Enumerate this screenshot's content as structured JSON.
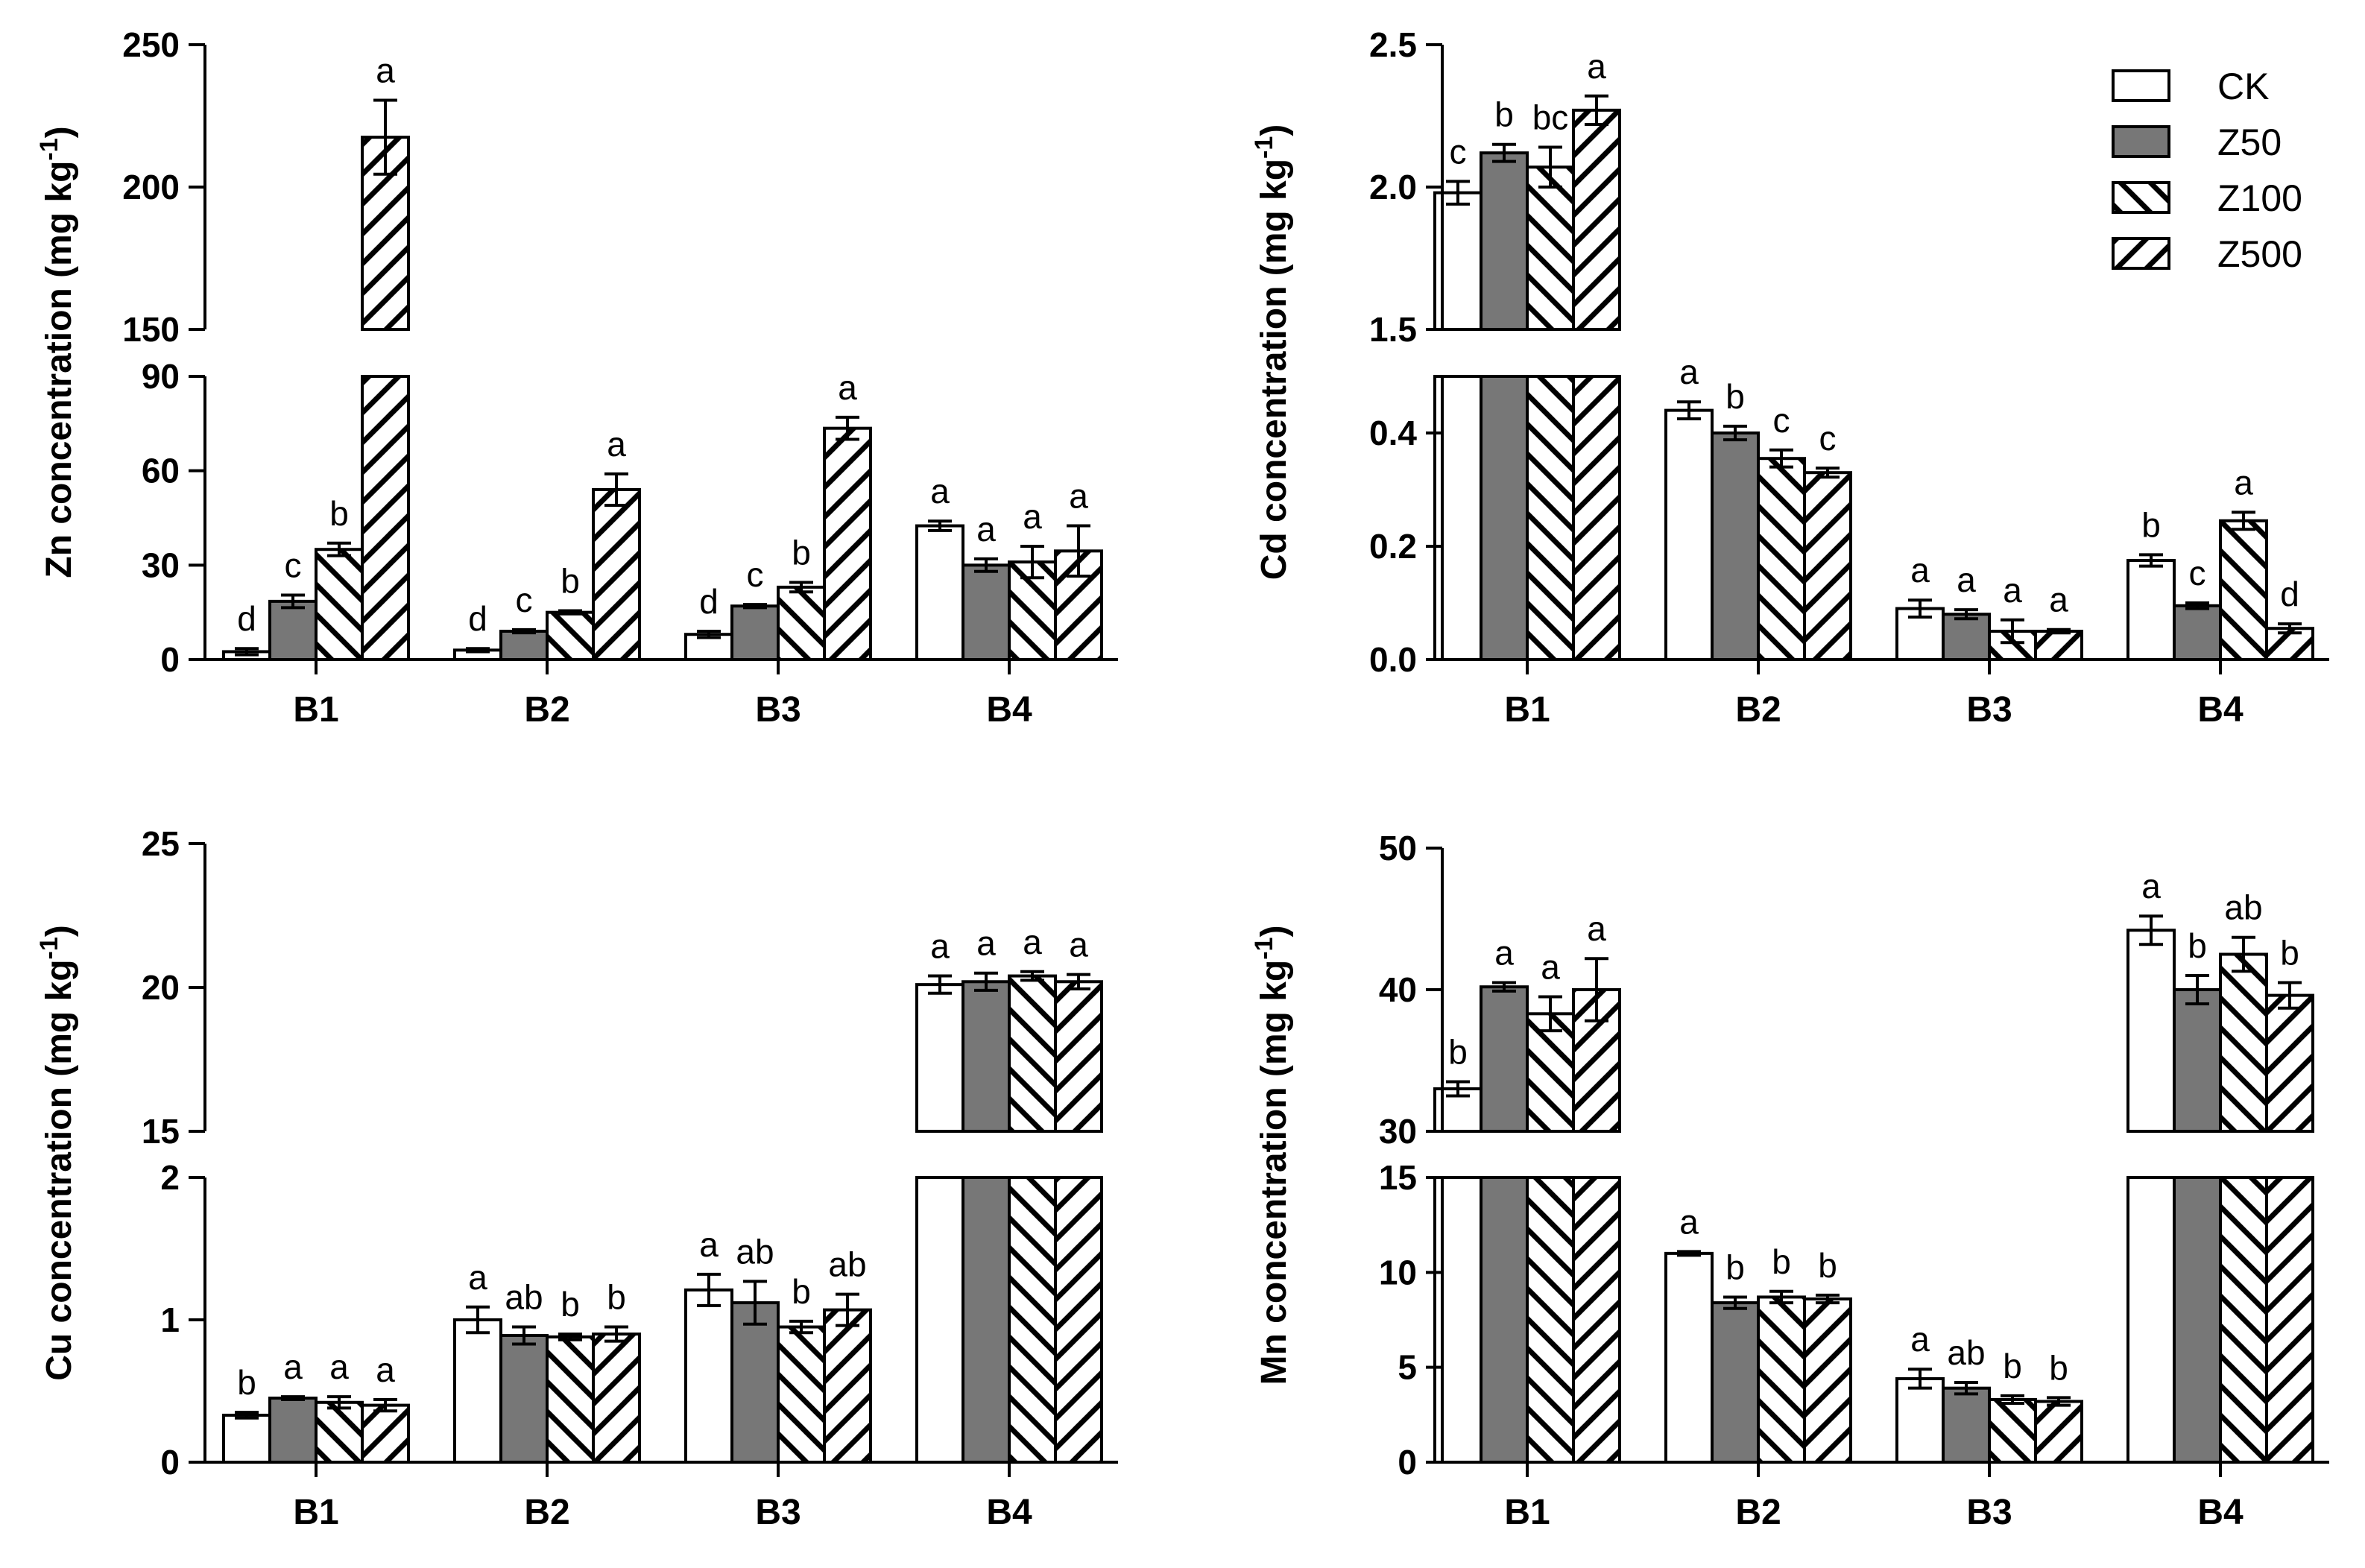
{
  "series_names": [
    "CK",
    "Z50",
    "Z100",
    "Z500"
  ],
  "chart_data": [
    {
      "type": "bar",
      "panel": "top-left",
      "ylabel": "Zn concentration (mg kg",
      "ylabel_sup": "-1",
      "ylabel_tail": ")",
      "categories": [
        "B1",
        "B2",
        "B3",
        "B4"
      ],
      "broken_axis": true,
      "lower_range": [
        0,
        90
      ],
      "lower_ticks": [
        "0",
        "30",
        "60",
        "90"
      ],
      "upper_range": [
        150,
        250
      ],
      "upper_ticks": [
        "150",
        "200",
        "250"
      ],
      "series": [
        {
          "name": "CK",
          "values": [
            2.5,
            3.0,
            8.0,
            42.5
          ],
          "errors": [
            1,
            0.5,
            1,
            1.5
          ],
          "letters": [
            "d",
            "d",
            "d",
            "a"
          ]
        },
        {
          "name": "Z50",
          "values": [
            18.5,
            9.0,
            17.0,
            30.0
          ],
          "errors": [
            2,
            0.5,
            0.5,
            2
          ],
          "letters": [
            "c",
            "c",
            "c",
            "a"
          ]
        },
        {
          "name": "Z100",
          "values": [
            35.0,
            15.0,
            23.0,
            31.0
          ],
          "errors": [
            2,
            0.5,
            1.5,
            5
          ],
          "letters": [
            "b",
            "b",
            "b",
            "a"
          ]
        },
        {
          "name": "Z500",
          "values": [
            217.5,
            54.0,
            73.5,
            34.5
          ],
          "errors": [
            13,
            5,
            3.5,
            8
          ],
          "letters": [
            "a",
            "a",
            "a",
            "a"
          ]
        }
      ]
    },
    {
      "type": "bar",
      "panel": "top-right",
      "ylabel": "Cd concentration (mg kg",
      "ylabel_sup": "-1",
      "ylabel_tail": ")",
      "categories": [
        "B1",
        "B2",
        "B3",
        "B4"
      ],
      "broken_axis": true,
      "lower_range": [
        0,
        0.5
      ],
      "lower_ticks": [
        "0.0",
        "0.2",
        "0.4"
      ],
      "upper_range": [
        1.5,
        2.5
      ],
      "upper_ticks": [
        "1.5",
        "2.0",
        "2.5"
      ],
      "legend_position": "top-right",
      "series": [
        {
          "name": "CK",
          "values": [
            1.98,
            0.44,
            0.09,
            0.175
          ],
          "errors": [
            0.04,
            0.015,
            0.015,
            0.01
          ],
          "letters": [
            "c",
            "a",
            "a",
            "b"
          ]
        },
        {
          "name": "Z50",
          "values": [
            2.12,
            0.4,
            0.08,
            0.095
          ],
          "errors": [
            0.03,
            0.012,
            0.008,
            0.005
          ],
          "letters": [
            "b",
            "b",
            "a",
            "c"
          ]
        },
        {
          "name": "Z100",
          "values": [
            2.07,
            0.355,
            0.05,
            0.245
          ],
          "errors": [
            0.07,
            0.015,
            0.02,
            0.015
          ],
          "letters": [
            "bc",
            "c",
            "a",
            "a"
          ]
        },
        {
          "name": "Z500",
          "values": [
            2.27,
            0.33,
            0.05,
            0.055
          ],
          "errors": [
            0.05,
            0.008,
            0.003,
            0.008
          ],
          "letters": [
            "a",
            "c",
            "a",
            "d"
          ]
        }
      ]
    },
    {
      "type": "bar",
      "panel": "bottom-left",
      "ylabel": "Cu concentration (mg kg",
      "ylabel_sup": "-1",
      "ylabel_tail": ")",
      "categories": [
        "B1",
        "B2",
        "B3",
        "B4"
      ],
      "broken_axis": true,
      "lower_range": [
        0,
        2
      ],
      "lower_ticks": [
        "0",
        "1",
        "2"
      ],
      "upper_range": [
        15,
        25
      ],
      "upper_ticks": [
        "15",
        "20",
        "25"
      ],
      "series": [
        {
          "name": "CK",
          "values": [
            0.33,
            1.0,
            1.21,
            20.1
          ],
          "errors": [
            0.02,
            0.09,
            0.11,
            0.3
          ],
          "letters": [
            "b",
            "a",
            "a",
            "a"
          ]
        },
        {
          "name": "Z50",
          "values": [
            0.45,
            0.89,
            1.12,
            20.2
          ],
          "errors": [
            0.01,
            0.06,
            0.15,
            0.3
          ],
          "letters": [
            "a",
            "ab",
            "ab",
            "a"
          ]
        },
        {
          "name": "Z100",
          "values": [
            0.42,
            0.88,
            0.95,
            20.4
          ],
          "errors": [
            0.04,
            0.02,
            0.04,
            0.15
          ],
          "letters": [
            "a",
            "b",
            "b",
            "a"
          ]
        },
        {
          "name": "Z500",
          "values": [
            0.4,
            0.9,
            1.07,
            20.2
          ],
          "errors": [
            0.04,
            0.05,
            0.11,
            0.25
          ],
          "letters": [
            "a",
            "b",
            "ab",
            "a"
          ]
        }
      ]
    },
    {
      "type": "bar",
      "panel": "bottom-right",
      "ylabel": "Mn concentration (mg kg",
      "ylabel_sup": "-1",
      "ylabel_tail": ")",
      "categories": [
        "B1",
        "B2",
        "B3",
        "B4"
      ],
      "broken_axis": true,
      "lower_range": [
        0,
        15
      ],
      "lower_ticks": [
        "0",
        "5",
        "10",
        "15"
      ],
      "upper_range": [
        30,
        50
      ],
      "upper_ticks": [
        "30",
        "40",
        "50"
      ],
      "series": [
        {
          "name": "CK",
          "values": [
            33.0,
            11.0,
            4.4,
            44.2
          ],
          "errors": [
            0.5,
            0.1,
            0.5,
            1.0
          ],
          "letters": [
            "b",
            "a",
            "a",
            "a"
          ]
        },
        {
          "name": "Z50",
          "values": [
            40.2,
            8.4,
            3.9,
            40.0
          ],
          "errors": [
            0.3,
            0.3,
            0.3,
            1.0
          ],
          "letters": [
            "a",
            "b",
            "ab",
            "b"
          ]
        },
        {
          "name": "Z100",
          "values": [
            38.3,
            8.7,
            3.3,
            42.5
          ],
          "errors": [
            1.2,
            0.3,
            0.2,
            1.2
          ],
          "letters": [
            "a",
            "b",
            "b",
            "ab"
          ]
        },
        {
          "name": "Z500",
          "values": [
            40.0,
            8.6,
            3.2,
            39.6
          ],
          "errors": [
            2.2,
            0.2,
            0.2,
            0.9
          ],
          "letters": [
            "a",
            "b",
            "b",
            "b"
          ]
        }
      ]
    }
  ]
}
